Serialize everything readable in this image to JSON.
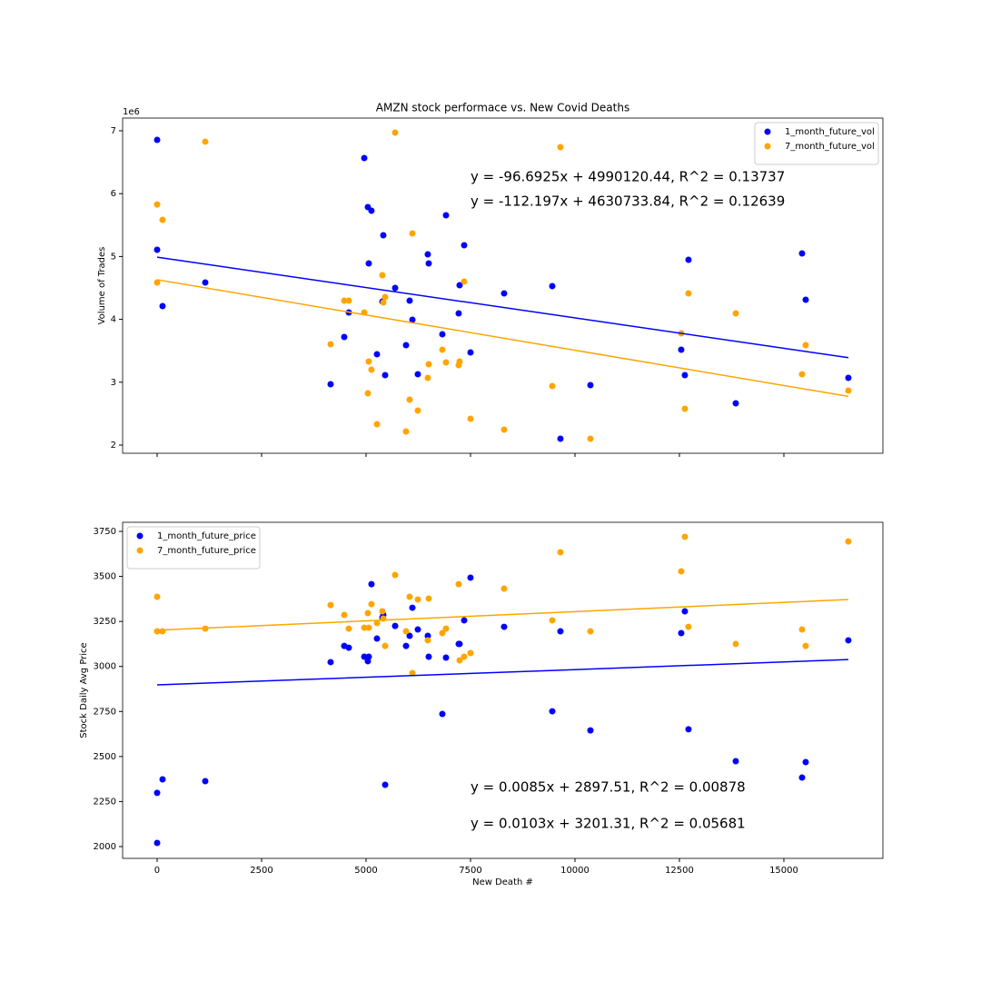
{
  "chart_data": [
    {
      "type": "scatter",
      "title": "AMZN stock performace vs. New Covid Deaths",
      "y_label": "Volume of Trades",
      "y_offset_label": "1e6",
      "x": [
        0,
        0,
        130,
        1152,
        4152,
        4478,
        4587,
        4957,
        5043,
        5065,
        5130,
        5261,
        5391,
        5413,
        5457,
        5696,
        5957,
        6043,
        6109,
        6239,
        6478,
        6500,
        6826,
        6913,
        7217,
        7239,
        7348,
        7500,
        8304,
        9457,
        9652,
        10370,
        12543,
        12630,
        12717,
        13848,
        15435,
        15522,
        16543
      ],
      "series": [
        {
          "name": "1_month_future_vol",
          "color": "#0000ff",
          "values": [
            6.855,
            5.107,
            4.211,
            4.587,
            2.968,
            3.72,
            4.11,
            6.566,
            5.786,
            4.89,
            5.728,
            3.445,
            4.283,
            5.338,
            3.113,
            4.5,
            3.59,
            4.298,
            3.994,
            3.127,
            5.035,
            4.89,
            3.763,
            5.656,
            4.095,
            4.543,
            5.179,
            3.474,
            4.413,
            4.529,
            2.101,
            2.954,
            3.517,
            3.113,
            4.948,
            2.665,
            5.049,
            4.312,
            3.069
          ]
        },
        {
          "name": "7_month_future_vol",
          "color": "#ffa500",
          "values": [
            5.827,
            4.587,
            5.584,
            6.827,
            3.604,
            4.298,
            4.298,
            4.11,
            2.824,
            3.329,
            3.199,
            2.332,
            4.702,
            4.269,
            4.355,
            6.971,
            2.217,
            2.723,
            5.367,
            2.549,
            3.069,
            3.286,
            3.517,
            3.315,
            3.272,
            3.329,
            4.601,
            2.419,
            2.246,
            2.939,
            6.74,
            2.101,
            3.777,
            2.578,
            4.413,
            4.095,
            3.127,
            3.59,
            2.867
          ]
        }
      ],
      "trendlines": [
        {
          "color": "#0000ff",
          "x": [
            0,
            16543
          ],
          "values": [
            4.99012,
            3.3906
          ]
        },
        {
          "color": "#ffa500",
          "x": [
            0,
            16543
          ],
          "values": [
            4.63073,
            2.7747
          ]
        }
      ],
      "annotations": [
        {
          "text": "y = -96.6925x + 4990120.44,  R^2 = 0.13737",
          "color": "#0000ff"
        },
        {
          "text": "y = -112.197x + 4630733.84,  R^2 = 0.12639",
          "color": "#ffa500"
        }
      ],
      "xlim": [
        -826,
        17370
      ],
      "ylim": [
        1.87,
        7.202
      ],
      "xticks": [
        0,
        2500,
        5000,
        7500,
        10000,
        12500,
        15000
      ],
      "xtick_labels": false,
      "yticks": [
        2,
        3,
        4,
        5,
        6,
        7
      ],
      "legend": "upper right"
    },
    {
      "type": "scatter",
      "x_label": "New Death #",
      "y_label": "Stock Daily Avg Price",
      "x": [
        0,
        0,
        130,
        1152,
        4152,
        4478,
        4587,
        4957,
        5043,
        5065,
        5130,
        5261,
        5391,
        5413,
        5457,
        5696,
        5957,
        6043,
        6109,
        6239,
        6478,
        6500,
        6826,
        6913,
        7217,
        7239,
        7348,
        7500,
        8304,
        9457,
        9652,
        10370,
        12543,
        12630,
        12717,
        13848,
        15435,
        15522,
        16543
      ],
      "series": [
        {
          "name": "1_month_future_price",
          "color": "#0000ff",
          "values": [
            2298,
            2020,
            2373,
            2363,
            3024,
            3114,
            3104,
            3054,
            3029,
            3054,
            3457,
            3155,
            3271,
            3286,
            2343,
            3225,
            3114,
            3170,
            3326,
            3205,
            3170,
            3054,
            2736,
            3049,
            3125,
            3125,
            3256,
            3493,
            3220,
            2751,
            3195,
            2645,
            3185,
            3306,
            2651,
            2474,
            2383,
            2469,
            3145
          ]
        },
        {
          "name": "7_month_future_price",
          "color": "#ffa500",
          "values": [
            3387,
            3195,
            3195,
            3210,
            3341,
            3286,
            3210,
            3215,
            3296,
            3215,
            3346,
            3241,
            3306,
            3266,
            3114,
            3508,
            3195,
            3387,
            2963,
            3372,
            3145,
            3377,
            3185,
            3210,
            3457,
            3034,
            3054,
            3074,
            3432,
            3256,
            3634,
            3195,
            3528,
            3720,
            3220,
            3125,
            3205,
            3114,
            3694
          ]
        }
      ],
      "trendlines": [
        {
          "color": "#0000ff",
          "x": [
            0,
            16543
          ],
          "values": [
            2897.51,
            3038.13
          ]
        },
        {
          "color": "#ffa500",
          "x": [
            0,
            16543
          ],
          "values": [
            3201.31,
            3371.7
          ]
        }
      ],
      "annotations": [
        {
          "text": "y = 0.0085x + 2897.51,  R^2 = 0.00878",
          "color": "#0000ff"
        },
        {
          "text": "y = 0.0103x + 3201.31,  R^2 = 0.05681",
          "color": "#ffa500"
        }
      ],
      "xlim": [
        -826,
        17370
      ],
      "ylim": [
        1934.4,
        3800.4
      ],
      "xticks": [
        0,
        2500,
        5000,
        7500,
        10000,
        12500,
        15000
      ],
      "xtick_labels": true,
      "yticks": [
        2000,
        2250,
        2500,
        2750,
        3000,
        3250,
        3500,
        3750
      ],
      "legend": "upper left"
    }
  ]
}
